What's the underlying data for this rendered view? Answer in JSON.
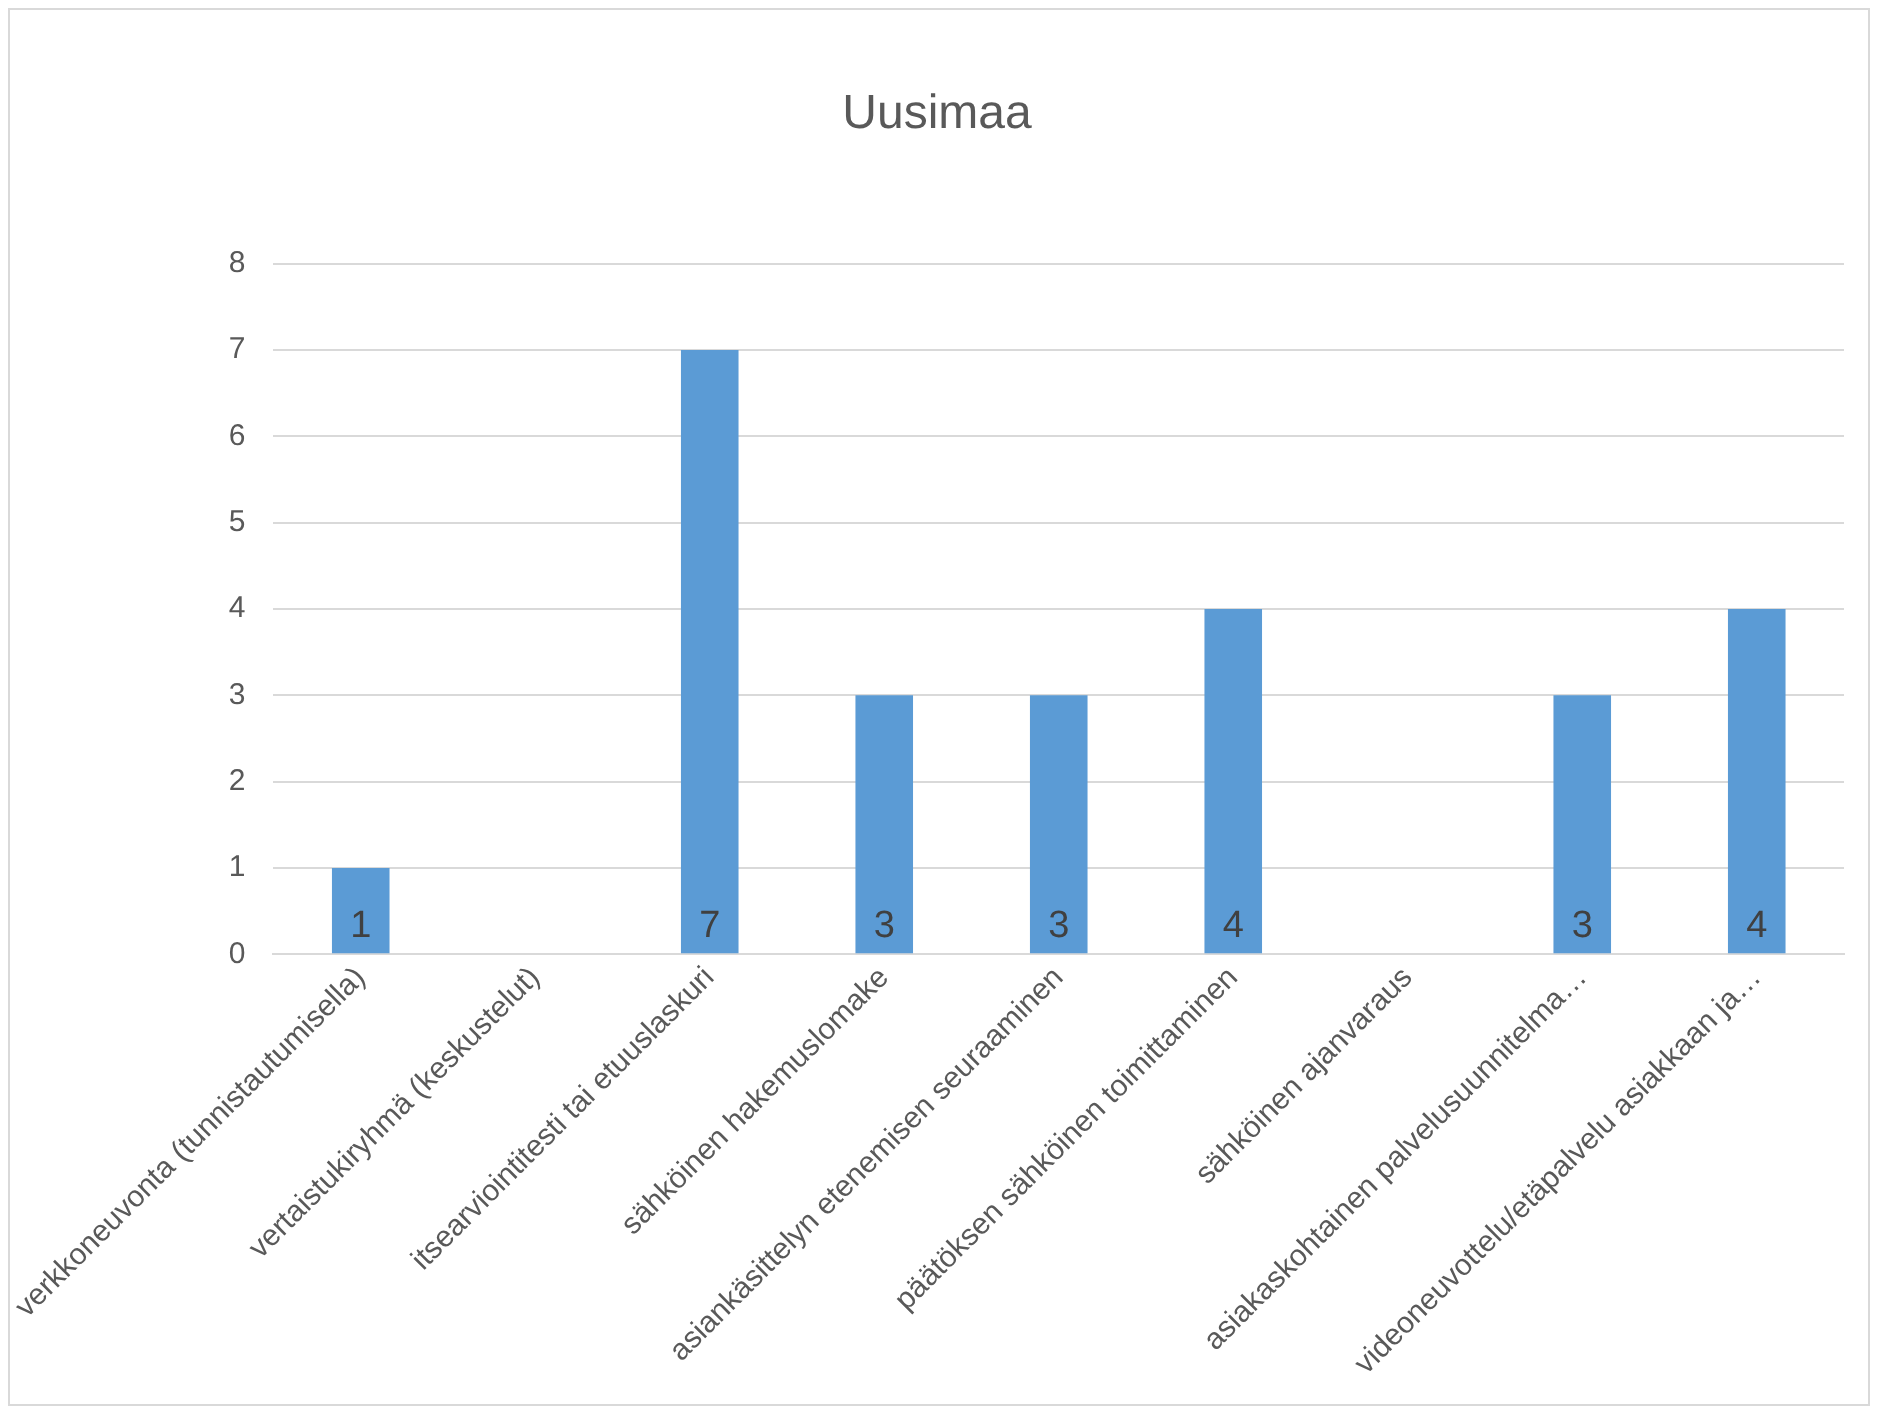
{
  "chart_data": {
    "type": "bar",
    "title": "Uusimaa",
    "categories": [
      "verkkoneuvonta (tunnistautumisella)",
      "vertaistukiryhmä (keskustelut)",
      "itsearviointitesti tai etuuslaskuri",
      "sähköinen hakemuslomake",
      "asiankäsittelyn etenemisen seuraaminen",
      "päätöksen sähköinen toimittaminen",
      "sähköinen ajanvaraus",
      "asiakaskohtainen palvelusuunnitelma…",
      "videoneuvottelu/etäpalvelu asiakkaan ja…"
    ],
    "values": [
      1,
      null,
      7,
      3,
      3,
      4,
      null,
      3,
      4
    ],
    "color": "#5b9bd5",
    "ylim": [
      0,
      8
    ],
    "yticks": [
      0,
      1,
      2,
      3,
      4,
      5,
      6,
      7,
      8
    ],
    "grid": "y",
    "legend": false,
    "data_labels": true
  }
}
